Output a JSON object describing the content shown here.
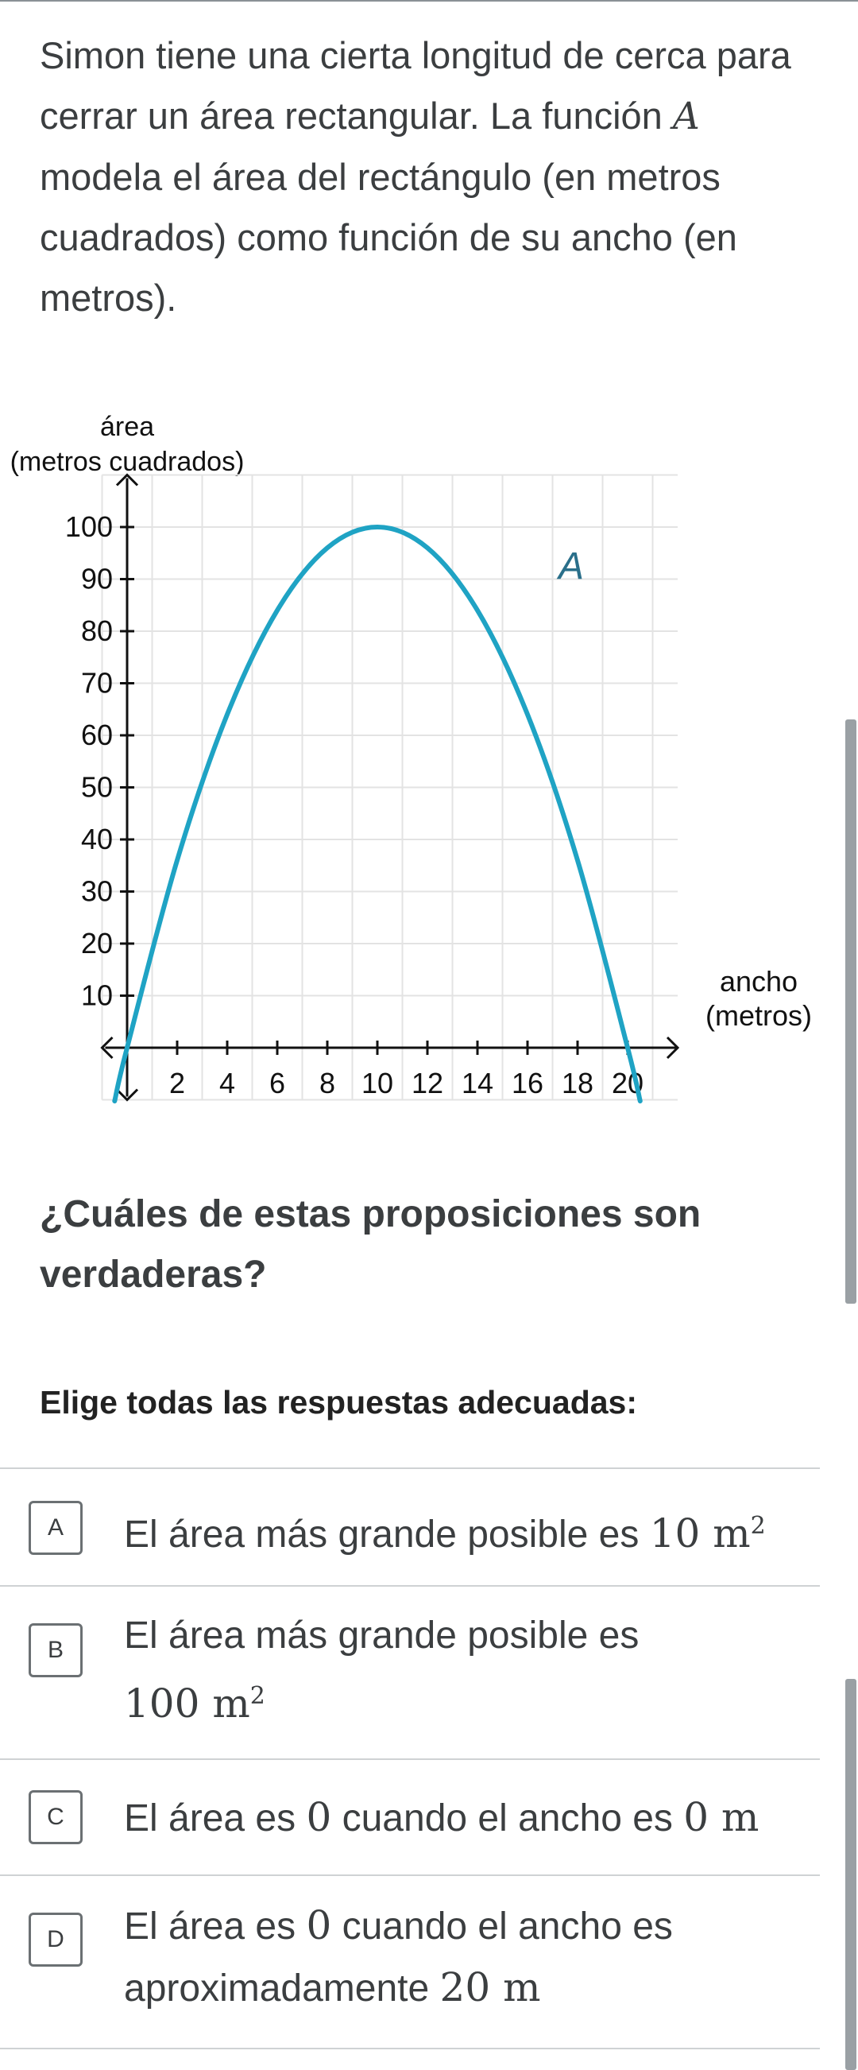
{
  "problem": {
    "intro_before": "Simon tiene una cierta longitud de cerca para cerrar un área rectangular. La función ",
    "intro_var": "A",
    "intro_after": " modela el área del rectángulo (en metros cuadrados) como función de su ancho (en metros).",
    "question": "¿Cuáles de estas proposiciones son verdaderas?",
    "instruction": "Elige todas las respuestas adecuadas:"
  },
  "chart_data": {
    "type": "line",
    "title": "",
    "ylabel_line1": "área",
    "ylabel_line2": "(metros cuadrados)",
    "xlabel_line1": "ancho",
    "xlabel_line2": "(metros)",
    "function_label": "A",
    "xlim": [
      -1,
      22
    ],
    "ylim": [
      -10,
      110
    ],
    "grid": true,
    "x_ticks": [
      2,
      4,
      6,
      8,
      10,
      12,
      14,
      16,
      18,
      20
    ],
    "y_ticks": [
      10,
      20,
      30,
      40,
      50,
      60,
      70,
      80,
      90,
      100
    ],
    "series": [
      {
        "color": "#1fa3c4",
        "x": [
          -0.5,
          0,
          2,
          4,
          6,
          8,
          10,
          12,
          14,
          16,
          18,
          20,
          20.5
        ],
        "y": [
          -10.25,
          0,
          36,
          64,
          84,
          96,
          100,
          96,
          84,
          64,
          36,
          0,
          -10.25
        ]
      }
    ]
  },
  "choices": [
    {
      "letter": "A",
      "parts": [
        {
          "t": "El área más grande posible es ",
          "m": false
        },
        {
          "t": "10 m",
          "m": true
        },
        {
          "t": "2",
          "m": true,
          "sup": true
        }
      ]
    },
    {
      "letter": "B",
      "parts": [
        {
          "t": "El área más grande posible es",
          "m": false,
          "br": true
        },
        {
          "t": "100 m",
          "m": true
        },
        {
          "t": "2",
          "m": true,
          "sup": true
        }
      ]
    },
    {
      "letter": "C",
      "parts": [
        {
          "t": "El área es ",
          "m": false
        },
        {
          "t": "0",
          "m": true
        },
        {
          "t": " cuando el ancho es ",
          "m": false
        },
        {
          "t": "0 m",
          "m": true
        }
      ]
    },
    {
      "letter": "D",
      "parts": [
        {
          "t": "El área es ",
          "m": false
        },
        {
          "t": "0",
          "m": true
        },
        {
          "t": " cuando el ancho es aproximadamente ",
          "m": false
        },
        {
          "t": "20 m",
          "m": true
        }
      ]
    }
  ],
  "colors": {
    "curve": "#1fa3c4",
    "grid": "#e3e3e3",
    "axis": "#111111",
    "divider": "#cfd2d4",
    "text": "#3b3e40"
  }
}
